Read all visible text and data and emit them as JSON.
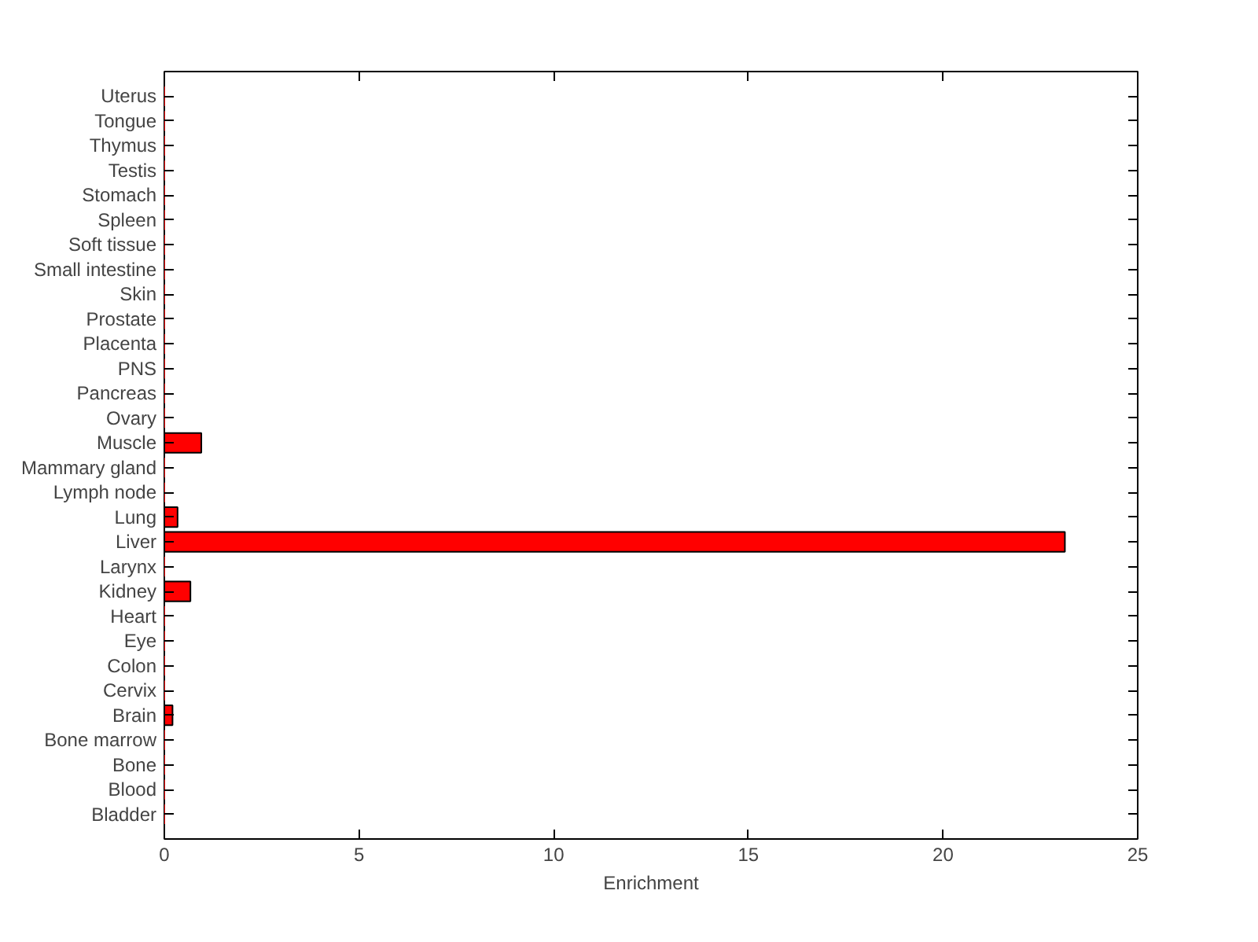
{
  "chart_data": {
    "type": "bar",
    "orientation": "horizontal",
    "xlabel": "Enrichment",
    "categories": [
      "Uterus",
      "Tongue",
      "Thymus",
      "Testis",
      "Stomach",
      "Spleen",
      "Soft tissue",
      "Small intestine",
      "Skin",
      "Prostate",
      "Placenta",
      "PNS",
      "Pancreas",
      "Ovary",
      "Muscle",
      "Mammary gland",
      "Lymph node",
      "Lung",
      "Liver",
      "Larynx",
      "Kidney",
      "Heart",
      "Eye",
      "Colon",
      "Cervix",
      "Brain",
      "Bone marrow",
      "Bone",
      "Blood",
      "Bladder"
    ],
    "values": [
      0,
      0,
      0,
      0,
      0,
      0,
      0,
      0,
      0,
      0,
      0,
      0,
      0,
      0,
      0.95,
      0,
      0,
      0.34,
      23.13,
      0,
      0.67,
      0,
      0,
      0,
      0,
      0.21,
      0,
      0,
      0,
      0
    ],
    "color": "#ff0000",
    "xlim": [
      0,
      25
    ],
    "xticks": [
      0,
      5,
      10,
      15,
      20,
      25
    ],
    "grid": false
  }
}
